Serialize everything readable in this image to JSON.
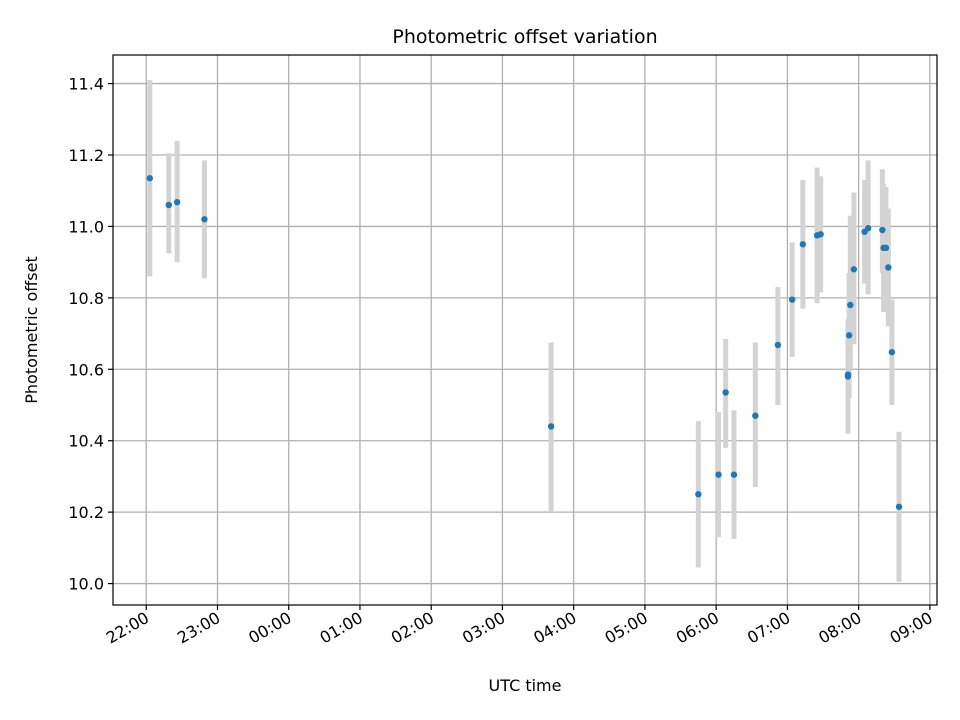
{
  "chart_data": {
    "type": "scatter",
    "title": "Photometric offset variation",
    "xlabel": "UTC time",
    "ylabel": "Photometric offset",
    "x_tick_labels": [
      "22:00",
      "23:00",
      "00:00",
      "01:00",
      "02:00",
      "03:00",
      "04:00",
      "05:00",
      "06:00",
      "07:00",
      "08:00",
      "09:00"
    ],
    "y_ticks": [
      10.0,
      10.2,
      10.4,
      10.6,
      10.8,
      11.0,
      11.2,
      11.4
    ],
    "y_tick_labels": [
      "10.0",
      "10.2",
      "10.4",
      "10.6",
      "10.8",
      "11.0",
      "11.2",
      "11.4"
    ],
    "ylim": [
      9.94,
      11.48
    ],
    "xlim": [
      "21:32",
      "09:06"
    ],
    "grid": true,
    "colors": {
      "point": "#1f77b4",
      "errorbar": "#d3d3d3",
      "grid": "#b0b0b0"
    },
    "series": [
      {
        "points": [
          {
            "x": "22:03",
            "y": 11.135,
            "low": 10.86,
            "high": 11.41
          },
          {
            "x": "22:19",
            "y": 11.06,
            "low": 10.925,
            "high": 11.205
          },
          {
            "x": "22:26",
            "y": 11.068,
            "low": 10.9,
            "high": 11.24
          },
          {
            "x": "22:49",
            "y": 11.02,
            "low": 10.855,
            "high": 11.185
          },
          {
            "x": "03:41",
            "y": 10.44,
            "low": 10.2,
            "high": 10.675
          },
          {
            "x": "05:45",
            "y": 10.25,
            "low": 10.045,
            "high": 10.455
          },
          {
            "x": "06:02",
            "y": 10.305,
            "low": 10.13,
            "high": 10.48
          },
          {
            "x": "06:08",
            "y": 10.535,
            "low": 10.38,
            "high": 10.685
          },
          {
            "x": "06:15",
            "y": 10.305,
            "low": 10.125,
            "high": 10.485
          },
          {
            "x": "06:33",
            "y": 10.47,
            "low": 10.27,
            "high": 10.675
          },
          {
            "x": "06:52",
            "y": 10.668,
            "low": 10.5,
            "high": 10.83
          },
          {
            "x": "07:04",
            "y": 10.795,
            "low": 10.635,
            "high": 10.955
          },
          {
            "x": "07:13",
            "y": 10.95,
            "low": 10.77,
            "high": 11.13
          },
          {
            "x": "07:25",
            "y": 10.975,
            "low": 10.785,
            "high": 11.165
          },
          {
            "x": "07:28",
            "y": 10.978,
            "low": 10.815,
            "high": 11.14
          },
          {
            "x": "07:51",
            "y": 10.58,
            "low": 10.42,
            "high": 10.74
          },
          {
            "x": "07:51",
            "y": 10.585,
            "low": 10.55,
            "high": 10.615
          },
          {
            "x": "07:52",
            "y": 10.695,
            "low": 10.52,
            "high": 10.87
          },
          {
            "x": "07:53",
            "y": 10.78,
            "low": 10.6,
            "high": 11.03
          },
          {
            "x": "07:56",
            "y": 10.88,
            "low": 10.67,
            "high": 11.095
          },
          {
            "x": "08:05",
            "y": 10.985,
            "low": 10.84,
            "high": 11.13
          },
          {
            "x": "08:08",
            "y": 10.995,
            "low": 10.81,
            "high": 11.185
          },
          {
            "x": "08:20",
            "y": 10.99,
            "low": 10.87,
            "high": 11.16
          },
          {
            "x": "08:21",
            "y": 10.94,
            "low": 10.76,
            "high": 11.12
          },
          {
            "x": "08:23",
            "y": 10.94,
            "low": 10.77,
            "high": 11.11
          },
          {
            "x": "08:25",
            "y": 10.885,
            "low": 10.72,
            "high": 11.05
          },
          {
            "x": "08:28",
            "y": 10.648,
            "low": 10.5,
            "high": 10.795
          },
          {
            "x": "08:34",
            "y": 10.215,
            "low": 10.005,
            "high": 10.425
          }
        ]
      }
    ]
  }
}
